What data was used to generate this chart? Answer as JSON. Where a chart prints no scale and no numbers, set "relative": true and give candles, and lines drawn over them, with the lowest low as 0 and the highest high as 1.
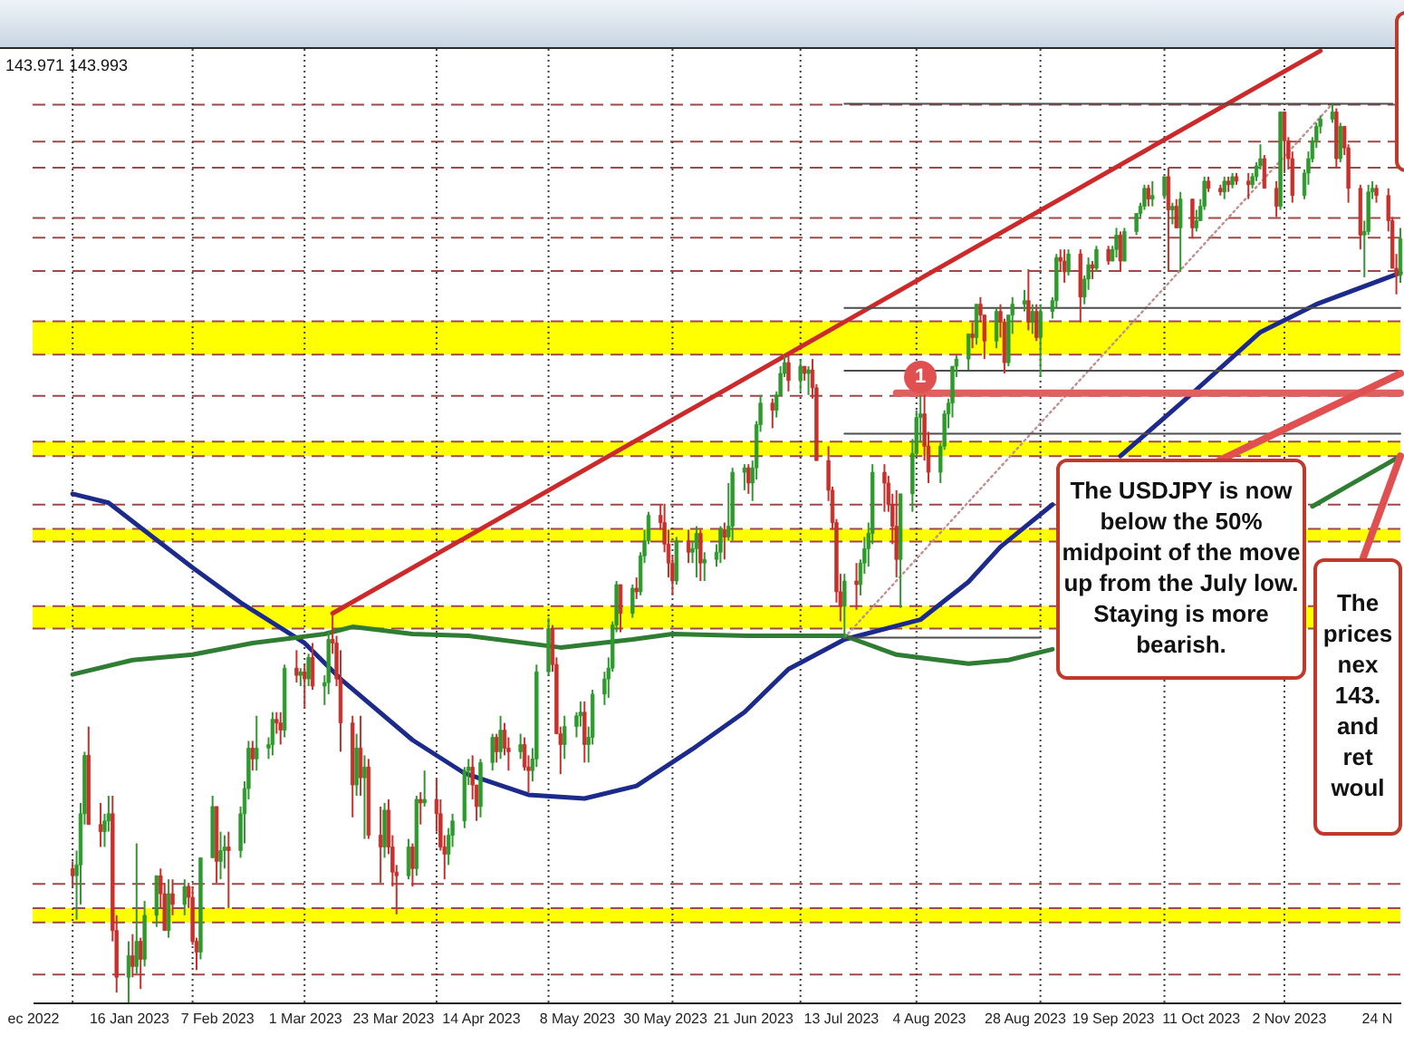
{
  "chart_data": {
    "type": "candlestick",
    "relative": true,
    "x": [
      "2023-01-02",
      "2023-01-03",
      "2023-01-04",
      "2023-01-05",
      "2023-01-06",
      "2023-01-09",
      "2023-01-10",
      "2023-01-11",
      "2023-01-12",
      "2023-01-13",
      "2023-01-16",
      "2023-01-17",
      "2023-01-18",
      "2023-01-19",
      "2023-01-20",
      "2023-01-23",
      "2023-01-24",
      "2023-01-25",
      "2023-01-26",
      "2023-01-27",
      "2023-01-30",
      "2023-01-31",
      "2023-02-01",
      "2023-02-02",
      "2023-02-03",
      "2023-02-06",
      "2023-02-07",
      "2023-02-08",
      "2023-02-09",
      "2023-02-10",
      "2023-02-13",
      "2023-02-14",
      "2023-02-15",
      "2023-02-16",
      "2023-02-17",
      "2023-02-20",
      "2023-02-21",
      "2023-02-22",
      "2023-02-23",
      "2023-02-24",
      "2023-02-27",
      "2023-02-28",
      "2023-03-01",
      "2023-03-02",
      "2023-03-03",
      "2023-03-06",
      "2023-03-07",
      "2023-03-08",
      "2023-03-09",
      "2023-03-10",
      "2023-03-13",
      "2023-03-14",
      "2023-03-15",
      "2023-03-16",
      "2023-03-17",
      "2023-03-20",
      "2023-03-21",
      "2023-03-22",
      "2023-03-23",
      "2023-03-24",
      "2023-03-27",
      "2023-03-28",
      "2023-03-29",
      "2023-03-30",
      "2023-03-31",
      "2023-04-03",
      "2023-04-04",
      "2023-04-05",
      "2023-04-06",
      "2023-04-07",
      "2023-04-10",
      "2023-04-11",
      "2023-04-12",
      "2023-04-13",
      "2023-04-14",
      "2023-04-17",
      "2023-04-18",
      "2023-04-19",
      "2023-04-20",
      "2023-04-21",
      "2023-04-24",
      "2023-04-25",
      "2023-04-26",
      "2023-04-27",
      "2023-04-28",
      "2023-05-01",
      "2023-05-02",
      "2023-05-03",
      "2023-05-04",
      "2023-05-05",
      "2023-05-08",
      "2023-05-09",
      "2023-05-10",
      "2023-05-11",
      "2023-05-12",
      "2023-05-15",
      "2023-05-16",
      "2023-05-17",
      "2023-05-18",
      "2023-05-19",
      "2023-05-22",
      "2023-05-23",
      "2023-05-24",
      "2023-05-25",
      "2023-05-26",
      "2023-05-29",
      "2023-05-30",
      "2023-05-31",
      "2023-06-01",
      "2023-06-02",
      "2023-06-05",
      "2023-06-06",
      "2023-06-07",
      "2023-06-08",
      "2023-06-09",
      "2023-06-12",
      "2023-06-13",
      "2023-06-14",
      "2023-06-15",
      "2023-06-16",
      "2023-06-19",
      "2023-06-20",
      "2023-06-21",
      "2023-06-22",
      "2023-06-23",
      "2023-06-26",
      "2023-06-27",
      "2023-06-28",
      "2023-06-29",
      "2023-06-30",
      "2023-07-03",
      "2023-07-04",
      "2023-07-05",
      "2023-07-06",
      "2023-07-07",
      "2023-07-10",
      "2023-07-11",
      "2023-07-12",
      "2023-07-13",
      "2023-07-14",
      "2023-07-17",
      "2023-07-18",
      "2023-07-19",
      "2023-07-20",
      "2023-07-21",
      "2023-07-24",
      "2023-07-25",
      "2023-07-26",
      "2023-07-27",
      "2023-07-28",
      "2023-07-31",
      "2023-08-01",
      "2023-08-02",
      "2023-08-03",
      "2023-08-04",
      "2023-08-07",
      "2023-08-08",
      "2023-08-09",
      "2023-08-10",
      "2023-08-11",
      "2023-08-14",
      "2023-08-15",
      "2023-08-16",
      "2023-08-17",
      "2023-08-18",
      "2023-08-21",
      "2023-08-22",
      "2023-08-23",
      "2023-08-24",
      "2023-08-25",
      "2023-08-28",
      "2023-08-29",
      "2023-08-30",
      "2023-08-31",
      "2023-09-01",
      "2023-09-04",
      "2023-09-05",
      "2023-09-06",
      "2023-09-07",
      "2023-09-08",
      "2023-09-11",
      "2023-09-12",
      "2023-09-13",
      "2023-09-14",
      "2023-09-15",
      "2023-09-18",
      "2023-09-19",
      "2023-09-20",
      "2023-09-21",
      "2023-09-22",
      "2023-09-25",
      "2023-09-26",
      "2023-09-27",
      "2023-09-28",
      "2023-09-29",
      "2023-10-02",
      "2023-10-03",
      "2023-10-04",
      "2023-10-05",
      "2023-10-06",
      "2023-10-09",
      "2023-10-10",
      "2023-10-11",
      "2023-10-12",
      "2023-10-13",
      "2023-10-16",
      "2023-10-17",
      "2023-10-18",
      "2023-10-19",
      "2023-10-20",
      "2023-10-23",
      "2023-10-24",
      "2023-10-25",
      "2023-10-26",
      "2023-10-27",
      "2023-10-30",
      "2023-10-31",
      "2023-11-01",
      "2023-11-02",
      "2023-11-03",
      "2023-11-06",
      "2023-11-07",
      "2023-11-08",
      "2023-11-09",
      "2023-11-10",
      "2023-11-13",
      "2023-11-14",
      "2023-11-15",
      "2023-11-16",
      "2023-11-17",
      "2023-11-20",
      "2023-11-21",
      "2023-11-22",
      "2023-11-23",
      "2023-11-24",
      "2023-11-27",
      "2023-11-28",
      "2023-11-29",
      "2023-11-30"
    ],
    "ohlc": [
      [
        0.149,
        0.157,
        0.129,
        0.141
      ],
      [
        0.141,
        0.169,
        0.092,
        0.153
      ],
      [
        0.153,
        0.222,
        0.109,
        0.21
      ],
      [
        0.21,
        0.279,
        0.198,
        0.275
      ],
      [
        0.275,
        0.307,
        0.198,
        0.198
      ],
      [
        0.198,
        0.222,
        0.173,
        0.19
      ],
      [
        0.19,
        0.21,
        0.173,
        0.202
      ],
      [
        0.202,
        0.23,
        0.19,
        0.21
      ],
      [
        0.21,
        0.23,
        0.068,
        0.08
      ],
      [
        0.08,
        0.097,
        0.011,
        0.028
      ],
      [
        0.028,
        0.068,
        0,
        0.052
      ],
      [
        0.052,
        0.076,
        0.028,
        0.04
      ],
      [
        0.04,
        0.177,
        0.032,
        0.068
      ],
      [
        0.068,
        0.072,
        0.015,
        0.048
      ],
      [
        0.048,
        0.113,
        0.04,
        0.097
      ],
      [
        0.097,
        0.141,
        0.084,
        0.141
      ],
      [
        0.141,
        0.149,
        0.105,
        0.121
      ],
      [
        0.121,
        0.133,
        0.08,
        0.08
      ],
      [
        0.08,
        0.137,
        0.072,
        0.121
      ],
      [
        0.121,
        0.137,
        0.097,
        0.109
      ],
      [
        0.109,
        0.137,
        0.097,
        0.129
      ],
      [
        0.129,
        0.133,
        0.105,
        0.117
      ],
      [
        0.117,
        0.129,
        0.064,
        0.068
      ],
      [
        0.068,
        0.072,
        0.036,
        0.056
      ],
      [
        0.056,
        0.161,
        0.048,
        0.161
      ],
      [
        0.161,
        0.23,
        0.161,
        0.218
      ],
      [
        0.218,
        0.218,
        0.133,
        0.157
      ],
      [
        0.157,
        0.19,
        0.137,
        0.169
      ],
      [
        0.169,
        0.186,
        0.149,
        0.173
      ],
      [
        0.173,
        0.19,
        0.105,
        0.169
      ],
      [
        0.169,
        0.218,
        0.161,
        0.21
      ],
      [
        0.21,
        0.246,
        0.177,
        0.238
      ],
      [
        0.238,
        0.291,
        0.226,
        0.283
      ],
      [
        0.283,
        0.291,
        0.258,
        0.271
      ],
      [
        0.271,
        0.319,
        0.258,
        0.283
      ],
      [
        0.283,
        0.295,
        0.271,
        0.287
      ],
      [
        0.287,
        0.323,
        0.275,
        0.315
      ],
      [
        0.315,
        0.323,
        0.299,
        0.311
      ],
      [
        0.311,
        0.323,
        0.287,
        0.303
      ],
      [
        0.303,
        0.376,
        0.295,
        0.372
      ],
      [
        0.372,
        0.392,
        0.356,
        0.364
      ],
      [
        0.364,
        0.372,
        0.352,
        0.368
      ],
      [
        0.368,
        0.376,
        0.327,
        0.36
      ],
      [
        0.36,
        0.388,
        0.352,
        0.384
      ],
      [
        0.384,
        0.4,
        0.348,
        0.352
      ],
      [
        0.352,
        0.364,
        0.331,
        0.356
      ],
      [
        0.356,
        0.412,
        0.343,
        0.404
      ],
      [
        0.404,
        0.433,
        0.388,
        0.4
      ],
      [
        0.4,
        0.408,
        0.352,
        0.36
      ],
      [
        0.36,
        0.392,
        0.279,
        0.311
      ],
      [
        0.311,
        0.319,
        0.206,
        0.242
      ],
      [
        0.242,
        0.299,
        0.23,
        0.283
      ],
      [
        0.283,
        0.319,
        0.23,
        0.25
      ],
      [
        0.25,
        0.275,
        0.182,
        0.262
      ],
      [
        0.262,
        0.271,
        0.182,
        0.186
      ],
      [
        0.186,
        0.218,
        0.133,
        0.173
      ],
      [
        0.173,
        0.222,
        0.161,
        0.214
      ],
      [
        0.214,
        0.226,
        0.165,
        0.173
      ],
      [
        0.173,
        0.186,
        0.129,
        0.145
      ],
      [
        0.145,
        0.153,
        0.098,
        0.141
      ],
      [
        0.141,
        0.182,
        0.137,
        0.173
      ],
      [
        0.173,
        0.177,
        0.129,
        0.149
      ],
      [
        0.149,
        0.23,
        0.141,
        0.226
      ],
      [
        0.226,
        0.234,
        0.198,
        0.222
      ],
      [
        0.222,
        0.258,
        0.218,
        0.226
      ],
      [
        0.226,
        0.25,
        0.19,
        0.21
      ],
      [
        0.21,
        0.226,
        0.169,
        0.173
      ],
      [
        0.173,
        0.186,
        0.137,
        0.165
      ],
      [
        0.165,
        0.194,
        0.153,
        0.186
      ],
      [
        0.186,
        0.21,
        0.173,
        0.202
      ],
      [
        0.202,
        0.262,
        0.194,
        0.258
      ],
      [
        0.258,
        0.271,
        0.242,
        0.262
      ],
      [
        0.262,
        0.275,
        0.226,
        0.242
      ],
      [
        0.242,
        0.242,
        0.202,
        0.218
      ],
      [
        0.218,
        0.271,
        0.206,
        0.267
      ],
      [
        0.267,
        0.299,
        0.258,
        0.295
      ],
      [
        0.295,
        0.299,
        0.267,
        0.279
      ],
      [
        0.279,
        0.319,
        0.271,
        0.303
      ],
      [
        0.303,
        0.311,
        0.275,
        0.283
      ],
      [
        0.283,
        0.295,
        0.258,
        0.279
      ],
      [
        0.279,
        0.299,
        0.271,
        0.287
      ],
      [
        0.287,
        0.295,
        0.258,
        0.262
      ],
      [
        0.262,
        0.275,
        0.234,
        0.258
      ],
      [
        0.258,
        0.283,
        0.246,
        0.271
      ],
      [
        0.271,
        0.376,
        0.262,
        0.368
      ],
      [
        0.368,
        0.428,
        0.364,
        0.416
      ],
      [
        0.416,
        0.42,
        0.368,
        0.376
      ],
      [
        0.376,
        0.384,
        0.299,
        0.299
      ],
      [
        0.299,
        0.307,
        0.254,
        0.287
      ],
      [
        0.287,
        0.319,
        0.271,
        0.307
      ],
      [
        0.307,
        0.323,
        0.295,
        0.319
      ],
      [
        0.319,
        0.335,
        0.307,
        0.323
      ],
      [
        0.323,
        0.335,
        0.267,
        0.287
      ],
      [
        0.287,
        0.307,
        0.267,
        0.295
      ],
      [
        0.295,
        0.348,
        0.287,
        0.343
      ],
      [
        0.343,
        0.368,
        0.331,
        0.36
      ],
      [
        0.36,
        0.384,
        0.339,
        0.372
      ],
      [
        0.372,
        0.424,
        0.368,
        0.42
      ],
      [
        0.42,
        0.469,
        0.412,
        0.465
      ],
      [
        0.465,
        0.465,
        0.412,
        0.433
      ],
      [
        0.433,
        0.465,
        0.428,
        0.461
      ],
      [
        0.461,
        0.473,
        0.449,
        0.457
      ],
      [
        0.457,
        0.501,
        0.453,
        0.497
      ],
      [
        0.497,
        0.526,
        0.489,
        0.514
      ],
      [
        0.514,
        0.546,
        0.51,
        0.542
      ],
      [
        0.542,
        0.554,
        0.526,
        0.534
      ],
      [
        0.534,
        0.555,
        0.501,
        0.51
      ],
      [
        0.51,
        0.526,
        0.473,
        0.489
      ],
      [
        0.489,
        0.497,
        0.453,
        0.469
      ],
      [
        0.469,
        0.518,
        0.465,
        0.514
      ],
      [
        0.514,
        0.526,
        0.489,
        0.501
      ],
      [
        0.501,
        0.514,
        0.489,
        0.505
      ],
      [
        0.505,
        0.53,
        0.473,
        0.522
      ],
      [
        0.522,
        0.526,
        0.469,
        0.489
      ],
      [
        0.489,
        0.501,
        0.469,
        0.493
      ],
      [
        0.493,
        0.51,
        0.485,
        0.501
      ],
      [
        0.501,
        0.53,
        0.489,
        0.526
      ],
      [
        0.526,
        0.534,
        0.493,
        0.518
      ],
      [
        0.518,
        0.578,
        0.514,
        0.53
      ],
      [
        0.53,
        0.595,
        0.514,
        0.59
      ],
      [
        0.59,
        0.599,
        0.57,
        0.595
      ],
      [
        0.595,
        0.599,
        0.566,
        0.578
      ],
      [
        0.578,
        0.603,
        0.558,
        0.595
      ],
      [
        0.595,
        0.647,
        0.582,
        0.643
      ],
      [
        0.643,
        0.676,
        0.635,
        0.667
      ],
      [
        0.667,
        0.672,
        0.639,
        0.659
      ],
      [
        0.659,
        0.68,
        0.651,
        0.676
      ],
      [
        0.676,
        0.708,
        0.676,
        0.7
      ],
      [
        0.7,
        0.72,
        0.696,
        0.712
      ],
      [
        0.712,
        0.723,
        0.68,
        0.692
      ],
      [
        0.692,
        0.716,
        0.68,
        0.708
      ],
      [
        0.708,
        0.708,
        0.692,
        0.7
      ],
      [
        0.7,
        0.708,
        0.676,
        0.704
      ],
      [
        0.704,
        0.716,
        0.672,
        0.684
      ],
      [
        0.684,
        0.688,
        0.603,
        0.603
      ],
      [
        0.603,
        0.619,
        0.558,
        0.57
      ],
      [
        0.57,
        0.574,
        0.526,
        0.534
      ],
      [
        0.534,
        0.538,
        0.445,
        0.457
      ],
      [
        0.457,
        0.477,
        0.424,
        0.441
      ],
      [
        0.441,
        0.477,
        0.406,
        0.469
      ],
      [
        0.469,
        0.489,
        0.437,
        0.465
      ],
      [
        0.465,
        0.493,
        0.453,
        0.489
      ],
      [
        0.489,
        0.518,
        0.477,
        0.505
      ],
      [
        0.505,
        0.534,
        0.485,
        0.522
      ],
      [
        0.522,
        0.599,
        0.51,
        0.59
      ],
      [
        0.59,
        0.599,
        0.546,
        0.578
      ],
      [
        0.578,
        0.586,
        0.546,
        0.554
      ],
      [
        0.554,
        0.566,
        0.51,
        0.53
      ],
      [
        0.53,
        0.57,
        0.473,
        0.493
      ],
      [
        0.493,
        0.566,
        0.439,
        0.566
      ],
      [
        0.566,
        0.627,
        0.546,
        0.611
      ],
      [
        0.611,
        0.659,
        0.607,
        0.651
      ],
      [
        0.651,
        0.676,
        0.623,
        0.655
      ],
      [
        0.655,
        0.676,
        0.603,
        0.619
      ],
      [
        0.619,
        0.635,
        0.578,
        0.59
      ],
      [
        0.59,
        0.623,
        0.578,
        0.619
      ],
      [
        0.619,
        0.659,
        0.615,
        0.655
      ],
      [
        0.655,
        0.672,
        0.639,
        0.667
      ],
      [
        0.667,
        0.708,
        0.651,
        0.708
      ],
      [
        0.708,
        0.72,
        0.696,
        0.716
      ],
      [
        0.716,
        0.744,
        0.704,
        0.744
      ],
      [
        0.744,
        0.757,
        0.728,
        0.74
      ],
      [
        0.74,
        0.777,
        0.732,
        0.777
      ],
      [
        0.777,
        0.785,
        0.757,
        0.765
      ],
      [
        0.765,
        0.765,
        0.716,
        0.736
      ],
      [
        0.736,
        0.773,
        0.728,
        0.769
      ],
      [
        0.769,
        0.777,
        0.74,
        0.757
      ],
      [
        0.757,
        0.761,
        0.7,
        0.712
      ],
      [
        0.712,
        0.765,
        0.708,
        0.765
      ],
      [
        0.765,
        0.785,
        0.744,
        0.777
      ],
      [
        0.777,
        0.793,
        0.769,
        0.781
      ],
      [
        0.781,
        0.816,
        0.748,
        0.757
      ],
      [
        0.757,
        0.777,
        0.744,
        0.769
      ],
      [
        0.769,
        0.777,
        0.736,
        0.74
      ],
      [
        0.74,
        0.777,
        0.696,
        0.769
      ],
      [
        0.769,
        0.785,
        0.761,
        0.781
      ],
      [
        0.781,
        0.833,
        0.773,
        0.829
      ],
      [
        0.829,
        0.838,
        0.813,
        0.825
      ],
      [
        0.825,
        0.838,
        0.801,
        0.813
      ],
      [
        0.813,
        0.838,
        0.809,
        0.833
      ],
      [
        0.833,
        0.838,
        0.757,
        0.785
      ],
      [
        0.785,
        0.809,
        0.777,
        0.805
      ],
      [
        0.805,
        0.829,
        0.793,
        0.821
      ],
      [
        0.821,
        0.825,
        0.805,
        0.817
      ],
      [
        0.817,
        0.842,
        0.813,
        0.838
      ],
      [
        0.838,
        0.842,
        0.821,
        0.825
      ],
      [
        0.825,
        0.842,
        0.825,
        0.838
      ],
      [
        0.838,
        0.862,
        0.829,
        0.854
      ],
      [
        0.854,
        0.858,
        0.813,
        0.825
      ],
      [
        0.825,
        0.862,
        0.825,
        0.858
      ],
      [
        0.858,
        0.878,
        0.854,
        0.878
      ],
      [
        0.878,
        0.89,
        0.874,
        0.886
      ],
      [
        0.886,
        0.91,
        0.882,
        0.906
      ],
      [
        0.906,
        0.91,
        0.886,
        0.894
      ],
      [
        0.894,
        0.914,
        0.886,
        0.898
      ],
      [
        0.898,
        0.919,
        0.894,
        0.919
      ],
      [
        0.919,
        0.929,
        0.813,
        0.882
      ],
      [
        0.882,
        0.89,
        0.866,
        0.886
      ],
      [
        0.886,
        0.894,
        0.862,
        0.862
      ],
      [
        0.862,
        0.902,
        0.813,
        0.894
      ],
      [
        0.894,
        0.894,
        0.85,
        0.862
      ],
      [
        0.862,
        0.882,
        0.858,
        0.87
      ],
      [
        0.87,
        0.894,
        0.87,
        0.886
      ],
      [
        0.886,
        0.919,
        0.882,
        0.914
      ],
      [
        0.914,
        0.919,
        0.902,
        0.906
      ],
      [
        0.906,
        0.91,
        0.898,
        0.902
      ],
      [
        0.902,
        0.919,
        0.894,
        0.914
      ],
      [
        0.914,
        0.919,
        0.902,
        0.91
      ],
      [
        0.91,
        0.923,
        0.906,
        0.919
      ],
      [
        0.919,
        0.923,
        0.91,
        0.914
      ],
      [
        0.914,
        0.923,
        0.894,
        0.91
      ],
      [
        0.91,
        0.923,
        0.906,
        0.919
      ],
      [
        0.919,
        0.935,
        0.914,
        0.931
      ],
      [
        0.931,
        0.955,
        0.927,
        0.939
      ],
      [
        0.939,
        0.943,
        0.906,
        0.906
      ],
      [
        0.906,
        0.914,
        0.874,
        0.886
      ],
      [
        0.886,
        0.991,
        0.882,
        0.991
      ],
      [
        0.991,
        0.991,
        0.923,
        0.959
      ],
      [
        0.959,
        0.963,
        0.927,
        0.939
      ],
      [
        0.939,
        0.947,
        0.89,
        0.898
      ],
      [
        0.898,
        0.927,
        0.894,
        0.923
      ],
      [
        0.923,
        0.947,
        0.91,
        0.939
      ],
      [
        0.939,
        0.963,
        0.935,
        0.959
      ],
      [
        0.959,
        0.979,
        0.951,
        0.975
      ],
      [
        0.975,
        0.987,
        0.967,
        0.983
      ],
      [
        0.983,
        1,
        0.979,
        0.991
      ],
      [
        0.991,
        0.995,
        0.929,
        0.939
      ],
      [
        0.939,
        0.979,
        0.935,
        0.975
      ],
      [
        0.975,
        0.975,
        0.943,
        0.951
      ],
      [
        0.951,
        0.955,
        0.89,
        0.906
      ],
      [
        0.906,
        0.91,
        0.838,
        0.854
      ],
      [
        0.854,
        0.87,
        0.807,
        0.858
      ],
      [
        0.858,
        0.91,
        0.854,
        0.902
      ],
      [
        0.902,
        0.914,
        0.894,
        0.906
      ],
      [
        0.906,
        0.91,
        0.89,
        0.898
      ],
      [
        0.898,
        0.906,
        0.858,
        0.87
      ],
      [
        0.87,
        0.874,
        0.817,
        0.817
      ],
      [
        0.817,
        0.833,
        0.788,
        0.809
      ],
      [
        0.809,
        0.862,
        0.801,
        0.85
      ]
    ],
    "colors": [
      "#c8302c",
      "#2e9a2e",
      "#2e9a2e",
      "#2e9a2e",
      "#c8302c",
      "#c8302c",
      "#2e9a2e",
      "#2e9a2e",
      "#c8302c",
      "#c8302c",
      "#2e9a2e",
      "#c8302c",
      "#2e9a2e",
      "#c8302c",
      "#2e9a2e",
      "#2e9a2e",
      "#c8302c",
      "#c8302c",
      "#2e9a2e",
      "#c8302c",
      "#2e9a2e",
      "#c8302c",
      "#c8302c",
      "#c8302c",
      "#2e9a2e",
      "#2e9a2e",
      "#c8302c",
      "#2e9a2e",
      "#2e9a2e",
      "#c8302c",
      "#2e9a2e",
      "#2e9a2e",
      "#2e9a2e",
      "#c8302c",
      "#2e9a2e",
      "#2e9a2e",
      "#2e9a2e",
      "#c8302c",
      "#c8302c",
      "#2e9a2e",
      "#c8302c",
      "#2e9a2e",
      "#c8302c",
      "#2e9a2e",
      "#c8302c",
      "#2e9a2e",
      "#2e9a2e",
      "#c8302c",
      "#c8302c",
      "#c8302c",
      "#c8302c",
      "#2e9a2e",
      "#c8302c",
      "#2e9a2e",
      "#c8302c",
      "#c8302c",
      "#2e9a2e",
      "#c8302c",
      "#c8302c",
      "#c8302c",
      "#2e9a2e",
      "#c8302c",
      "#2e9a2e",
      "#c8302c",
      "#2e9a2e",
      "#c8302c",
      "#c8302c",
      "#c8302c",
      "#2e9a2e",
      "#2e9a2e",
      "#2e9a2e",
      "#2e9a2e",
      "#c8302c",
      "#c8302c",
      "#2e9a2e",
      "#2e9a2e",
      "#c8302c",
      "#2e9a2e",
      "#c8302c",
      "#c8302c",
      "#2e9a2e",
      "#c8302c",
      "#c8302c",
      "#2e9a2e",
      "#2e9a2e",
      "#2e9a2e",
      "#c8302c",
      "#c8302c",
      "#c8302c",
      "#2e9a2e",
      "#2e9a2e",
      "#2e9a2e",
      "#c8302c",
      "#2e9a2e",
      "#2e9a2e",
      "#2e9a2e",
      "#2e9a2e",
      "#2e9a2e",
      "#2e9a2e",
      "#c8302c",
      "#2e9a2e",
      "#c8302c",
      "#2e9a2e",
      "#2e9a2e",
      "#2e9a2e",
      "#c8302c",
      "#c8302c",
      "#c8302c",
      "#c8302c",
      "#2e9a2e",
      "#c8302c",
      "#2e9a2e",
      "#2e9a2e",
      "#c8302c",
      "#2e9a2e",
      "#2e9a2e",
      "#2e9a2e",
      "#c8302c",
      "#2e9a2e",
      "#2e9a2e",
      "#2e9a2e",
      "#c8302c",
      "#2e9a2e",
      "#2e9a2e",
      "#2e9a2e",
      "#c8302c",
      "#2e9a2e",
      "#2e9a2e",
      "#2e9a2e",
      "#c8302c",
      "#2e9a2e",
      "#c8302c",
      "#2e9a2e",
      "#c8302c",
      "#c8302c",
      "#c8302c",
      "#c8302c",
      "#c8302c",
      "#c8302c",
      "#2e9a2e",
      "#c8302c",
      "#2e9a2e",
      "#2e9a2e",
      "#2e9a2e",
      "#2e9a2e",
      "#c8302c",
      "#c8302c",
      "#c8302c",
      "#c8302c",
      "#2e9a2e",
      "#2e9a2e",
      "#2e9a2e",
      "#2e9a2e",
      "#c8302c",
      "#c8302c",
      "#2e9a2e",
      "#2e9a2e",
      "#2e9a2e",
      "#2e9a2e",
      "#2e9a2e",
      "#2e9a2e",
      "#c8302c",
      "#2e9a2e",
      "#c8302c",
      "#c8302c",
      "#2e9a2e",
      "#c8302c",
      "#c8302c",
      "#2e9a2e",
      "#2e9a2e",
      "#2e9a2e",
      "#c8302c",
      "#2e9a2e",
      "#c8302c",
      "#2e9a2e",
      "#2e9a2e",
      "#2e9a2e",
      "#c8302c",
      "#c8302c",
      "#2e9a2e",
      "#c8302c",
      "#2e9a2e",
      "#2e9a2e",
      "#c8302c",
      "#2e9a2e",
      "#c8302c",
      "#2e9a2e",
      "#2e9a2e",
      "#c8302c",
      "#2e9a2e",
      "#2e9a2e",
      "#2e9a2e",
      "#2e9a2e",
      "#c8302c",
      "#2e9a2e",
      "#2e9a2e",
      "#c8302c",
      "#2e9a2e",
      "#c8302c",
      "#2e9a2e",
      "#c8302c",
      "#2e9a2e",
      "#2e9a2e",
      "#2e9a2e",
      "#c8302c",
      "#c8302c",
      "#2e9a2e",
      "#c8302c",
      "#2e9a2e",
      "#c8302c",
      "#c8302c",
      "#2e9a2e",
      "#2e9a2e",
      "#2e9a2e",
      "#c8302c",
      "#c8302c",
      "#2e9a2e",
      "#c8302c",
      "#c8302c",
      "#c8302c",
      "#2e9a2e",
      "#2e9a2e",
      "#2e9a2e",
      "#2e9a2e",
      "#2e9a2e",
      "#2e9a2e",
      "#c8302c",
      "#2e9a2e",
      "#c8302c",
      "#c8302c",
      "#c8302c",
      "#2e9a2e",
      "#2e9a2e",
      "#2e9a2e",
      "#c8302c",
      "#c8302c",
      "#c8302c",
      "#c8302c",
      "#2e9a2e"
    ],
    "xlim": [
      "2022-12-23",
      "2023-11-30"
    ],
    "xticks": [
      {
        "value": "2022-12-23",
        "label": "ec 2022"
      },
      {
        "value": "2023-01-16",
        "label": "16 Jan 2023"
      },
      {
        "value": "2023-02-07",
        "label": "7 Feb 2023"
      },
      {
        "value": "2023-03-01",
        "label": "1 Mar 2023"
      },
      {
        "value": "2023-03-23",
        "label": "23 Mar 2023"
      },
      {
        "value": "2023-04-14",
        "label": "14 Apr 2023"
      },
      {
        "value": "2023-05-08",
        "label": "8 May 2023"
      },
      {
        "value": "2023-05-30",
        "label": "30 May 2023"
      },
      {
        "value": "2023-06-21",
        "label": "21 Jun 2023"
      },
      {
        "value": "2023-07-13",
        "label": "13 Jul 2023"
      },
      {
        "value": "2023-08-04",
        "label": "4 Aug 2023"
      },
      {
        "value": "2023-08-28",
        "label": "28 Aug 2023"
      },
      {
        "value": "2023-09-19",
        "label": "19 Sep 2023"
      },
      {
        "value": "2023-10-11",
        "label": "11 Oct 2023"
      },
      {
        "value": "2023-11-02",
        "label": "2 Nov 2023"
      },
      {
        "value": "2023-11-24",
        "label": "24 N"
      }
    ],
    "series": [
      {
        "type": "line",
        "color": "#1c2a8c",
        "x": [
          "2023-01-02",
          "2023-01-11",
          "2023-01-20",
          "2023-02-01",
          "2023-02-13",
          "2023-03-01",
          "2023-03-10",
          "2023-03-28",
          "2023-04-10",
          "2023-04-26",
          "2023-05-10",
          "2023-05-23",
          "2023-06-06",
          "2023-06-19",
          "2023-06-30",
          "2023-07-14",
          "2023-08-02",
          "2023-08-14",
          "2023-08-22",
          "2023-09-04",
          "2023-09-12",
          "2023-09-21",
          "2023-10-09",
          "2023-10-26",
          "2023-11-09",
          "2023-11-30"
        ],
        "values": [
          0.566,
          0.556,
          0.525,
          0.484,
          0.445,
          0.4,
          0.36,
          0.292,
          0.255,
          0.231,
          0.227,
          0.241,
          0.282,
          0.323,
          0.371,
          0.404,
          0.426,
          0.468,
          0.507,
          0.554,
          null,
          0.608,
          0.678,
          0.746,
          0.777,
          0.812
        ]
      },
      {
        "type": "line",
        "color": "#2e7d32",
        "x": [
          "2023-01-02",
          "2023-01-17",
          "2023-02-01",
          "2023-02-16",
          "2023-03-06",
          "2023-03-13",
          "2023-03-28",
          "2023-04-11",
          "2023-05-04",
          "2023-05-22",
          "2023-06-01",
          "2023-06-20",
          "2023-07-14",
          "2023-07-27",
          "2023-08-14",
          "2023-08-24",
          "2023-09-04",
          "2023-10-02",
          "2023-11-08",
          "2023-11-17",
          "2023-11-30"
        ],
        "values": [
          0.365,
          0.381,
          0.387,
          0.4,
          0.41,
          0.418,
          0.41,
          0.408,
          0.395,
          0.404,
          0.41,
          0.408,
          0.408,
          0.387,
          0.377,
          0.381,
          0.393,
          null,
          0.552,
          0.575,
          0.608
        ]
      },
      {
        "type": "line",
        "color": "#cc2a2a",
        "x": [
          "2023-03-08",
          "2023-11-10"
        ],
        "values": [
          0.433,
          1.059
        ]
      },
      {
        "type": "line",
        "color": "#c09090",
        "line_style": "dotted",
        "x": [
          "2023-07-14",
          "2023-11-13"
        ],
        "values": [
          0.406,
          1
        ]
      },
      {
        "type": "line",
        "color": "#e06060",
        "x": [
          "2023-07-27",
          "2023-11-30"
        ],
        "values": [
          0.678,
          0.678
        ]
      },
      {
        "type": "line",
        "color": "#4d4d4d",
        "x": [
          "2023-07-14",
          "2023-11-28"
        ],
        "values": [
          1,
          1
        ]
      },
      {
        "type": "line",
        "color": "#4d4d4d",
        "x": [
          "2023-07-14",
          "2023-11-30"
        ],
        "values": [
          0.773,
          0.773
        ]
      },
      {
        "type": "line",
        "color": "#4d4d4d",
        "x": [
          "2023-07-14",
          "2023-11-30"
        ],
        "values": [
          0.703,
          0.703
        ]
      },
      {
        "type": "line",
        "color": "#4d4d4d",
        "x": [
          "2023-07-14",
          "2023-11-30"
        ],
        "values": [
          0.633,
          0.633
        ]
      },
      {
        "type": "line",
        "color": "#4d4d4d",
        "x": [
          "2023-07-14",
          "2023-09-01"
        ],
        "values": [
          0.406,
          0.406
        ]
      }
    ],
    "bands": [
      {
        "axis": "y",
        "from": 0.721,
        "to": 0.758,
        "color": "#ffff00"
      },
      {
        "axis": "y",
        "from": 0.608,
        "to": 0.624,
        "color": "#ffff00"
      },
      {
        "axis": "y",
        "from": 0.513,
        "to": 0.527,
        "color": "#ffff00"
      },
      {
        "axis": "y",
        "from": 0.416,
        "to": 0.441,
        "color": "#ffff00"
      },
      {
        "axis": "y",
        "from": 0.089,
        "to": 0.105,
        "color": "#ffff00"
      }
    ],
    "ref_lines": [
      {
        "axis": "y",
        "value": 0.999,
        "color": "#a04848",
        "line_style": "dashed"
      },
      {
        "axis": "y",
        "value": 0.958,
        "color": "#a04848",
        "line_style": "dashed"
      },
      {
        "axis": "y",
        "value": 0.929,
        "color": "#a04848",
        "line_style": "dashed"
      },
      {
        "axis": "y",
        "value": 0.873,
        "color": "#a04848",
        "line_style": "dashed"
      },
      {
        "axis": "y",
        "value": 0.851,
        "color": "#a04848",
        "line_style": "dashed"
      },
      {
        "axis": "y",
        "value": 0.814,
        "color": "#a04848",
        "line_style": "dashed"
      },
      {
        "axis": "y",
        "value": 0.758,
        "color": "#a04848",
        "line_style": "dashed"
      },
      {
        "axis": "y",
        "value": 0.721,
        "color": "#a04848",
        "line_style": "dashed"
      },
      {
        "axis": "y",
        "value": 0.675,
        "color": "#a04848",
        "line_style": "dashed"
      },
      {
        "axis": "y",
        "value": 0.624,
        "color": "#a04848",
        "line_style": "dashed"
      },
      {
        "axis": "y",
        "value": 0.608,
        "color": "#a04848",
        "line_style": "dashed"
      },
      {
        "axis": "y",
        "value": 0.554,
        "color": "#a04848",
        "line_style": "dashed"
      },
      {
        "axis": "y",
        "value": 0.527,
        "color": "#a04848",
        "line_style": "dashed"
      },
      {
        "axis": "y",
        "value": 0.513,
        "color": "#a04848",
        "line_style": "dashed"
      },
      {
        "axis": "y",
        "value": 0.441,
        "color": "#a04848",
        "line_style": "dashed"
      },
      {
        "axis": "y",
        "value": 0.416,
        "color": "#a04848",
        "line_style": "dashed"
      },
      {
        "axis": "y",
        "value": 0.132,
        "color": "#a04848",
        "line_style": "dashed"
      },
      {
        "axis": "y",
        "value": 0.105,
        "color": "#a04848",
        "line_style": "dashed"
      },
      {
        "axis": "y",
        "value": 0.089,
        "color": "#a04848",
        "line_style": "dashed"
      },
      {
        "axis": "y",
        "value": 0.031,
        "color": "#a04848",
        "line_style": "dashed"
      },
      {
        "axis": "x",
        "value": "2023-01-02",
        "color": "#404040",
        "line_style": "dotted"
      },
      {
        "axis": "x",
        "value": "2023-02-01",
        "color": "#404040",
        "line_style": "dotted"
      },
      {
        "axis": "x",
        "value": "2023-03-01",
        "color": "#404040",
        "line_style": "dotted"
      },
      {
        "axis": "x",
        "value": "2023-04-03",
        "color": "#404040",
        "line_style": "dotted"
      },
      {
        "axis": "x",
        "value": "2023-05-01",
        "color": "#404040",
        "line_style": "dotted"
      },
      {
        "axis": "x",
        "value": "2023-06-01",
        "color": "#404040",
        "line_style": "dotted"
      },
      {
        "axis": "x",
        "value": "2023-07-03",
        "color": "#404040",
        "line_style": "dotted"
      },
      {
        "axis": "x",
        "value": "2023-08-01",
        "color": "#404040",
        "line_style": "dotted"
      },
      {
        "axis": "x",
        "value": "2023-09-01",
        "color": "#404040",
        "line_style": "dotted"
      },
      {
        "axis": "x",
        "value": "2023-10-02",
        "color": "#404040",
        "line_style": "dotted"
      },
      {
        "axis": "x",
        "value": "2023-11-01",
        "color": "#404040",
        "line_style": "dotted"
      }
    ],
    "annotations": [
      "143.971 143.993",
      {
        "text": "The USDJPY is now\nbelow the 50%\nmidpoint of the move\nup from the July low.\nStaying is more\nbearish.",
        "x": "2023-11-30",
        "y": 0.7
      },
      {
        "text": "The\nprices\nnex\n143.\nand\nret\nwoul",
        "x": "2023-11-30",
        "y": 0.608
      },
      {
        "text": "1",
        "x": "2023-08-02",
        "y": 0.696
      }
    ]
  }
}
